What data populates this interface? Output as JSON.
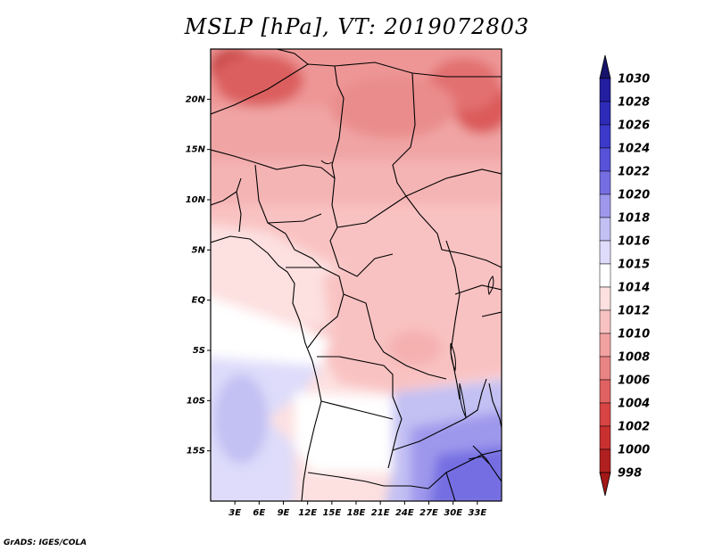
{
  "title": "MSLP [hPa], VT: 2019072803",
  "credit": "GrADS: IGES/COLA",
  "map": {
    "lon_range": [
      0,
      36
    ],
    "lat_range": [
      -20,
      25
    ],
    "lat_ticks": [
      {
        "value": 20,
        "label": "20N"
      },
      {
        "value": 15,
        "label": "15N"
      },
      {
        "value": 10,
        "label": "10N"
      },
      {
        "value": 5,
        "label": "5N"
      },
      {
        "value": 0,
        "label": "EQ"
      },
      {
        "value": -5,
        "label": "5S"
      },
      {
        "value": -10,
        "label": "10S"
      },
      {
        "value": -15,
        "label": "15S"
      }
    ],
    "lon_ticks": [
      {
        "value": 3,
        "label": "3E"
      },
      {
        "value": 6,
        "label": "6E"
      },
      {
        "value": 9,
        "label": "9E"
      },
      {
        "value": 12,
        "label": "12E"
      },
      {
        "value": 15,
        "label": "15E"
      },
      {
        "value": 18,
        "label": "18E"
      },
      {
        "value": 21,
        "label": "21E"
      },
      {
        "value": 24,
        "label": "24E"
      },
      {
        "value": 27,
        "label": "27E"
      },
      {
        "value": 30,
        "label": "30E"
      },
      {
        "value": 33,
        "label": "33E"
      }
    ]
  },
  "colorbar": {
    "levels": [
      {
        "label": "1030",
        "color": "#1e1a7a"
      },
      {
        "label": "1028",
        "color": "#241ea0"
      },
      {
        "label": "1026",
        "color": "#2d2bb8"
      },
      {
        "label": "1024",
        "color": "#3c3acb"
      },
      {
        "label": "1022",
        "color": "#5752d8"
      },
      {
        "label": "1020",
        "color": "#756ee2"
      },
      {
        "label": "1018",
        "color": "#9e98ec"
      },
      {
        "label": "1016",
        "color": "#c3c0f3"
      },
      {
        "label": "1015",
        "color": "#dedcfa"
      },
      {
        "label": "1014",
        "color": "#ffffff"
      },
      {
        "label": "1012",
        "color": "#fde0e0"
      },
      {
        "label": "1010",
        "color": "#f9c2c2"
      },
      {
        "label": "1008",
        "color": "#f2a1a1"
      },
      {
        "label": "1006",
        "color": "#e88484"
      },
      {
        "label": "1004",
        "color": "#e06262"
      },
      {
        "label": "1002",
        "color": "#d84444"
      },
      {
        "label": "1000",
        "color": "#c83030"
      },
      {
        "label": "998",
        "color": "#b02020"
      }
    ],
    "top_arrow_color": "#17136a",
    "bottom_arrow_color": "#a41818"
  }
}
